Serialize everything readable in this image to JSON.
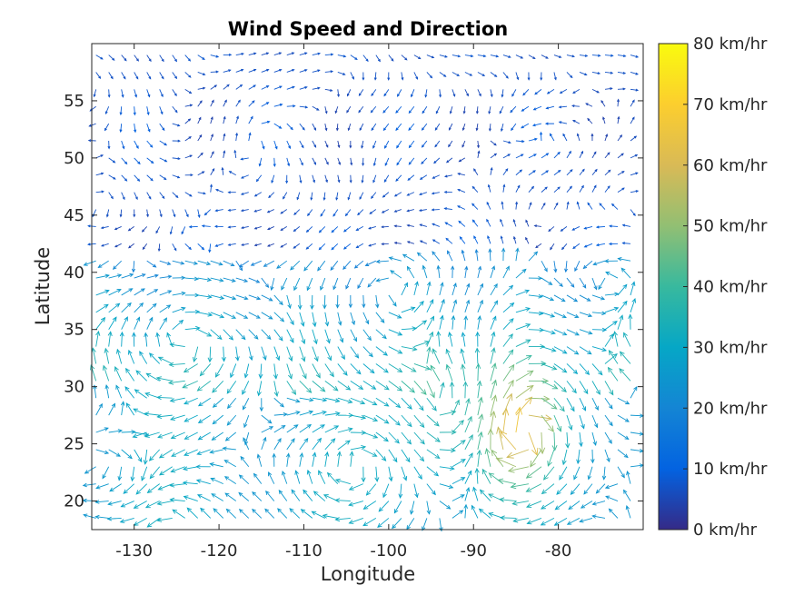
{
  "chart_data": {
    "type": "quiver",
    "title": "Wind Speed and Direction",
    "xlabel": "Longitude",
    "ylabel": "Latitude",
    "xlim": [
      -135,
      -70
    ],
    "ylim": [
      17.5,
      60
    ],
    "xticks": [
      -130,
      -120,
      -110,
      -100,
      -90,
      -80
    ],
    "xtick_labels": [
      "-130",
      "-120",
      "-110",
      "-100",
      "-90",
      "-80"
    ],
    "yticks": [
      20,
      25,
      30,
      35,
      40,
      45,
      50,
      55
    ],
    "ytick_labels": [
      "20",
      "25",
      "30",
      "35",
      "40",
      "45",
      "50",
      "55"
    ],
    "grid": false,
    "colormap": "parula",
    "colorbar": {
      "location": "right",
      "range": [
        0,
        80
      ],
      "ticks": [
        0,
        10,
        20,
        30,
        40,
        50,
        60,
        70,
        80
      ],
      "tick_labels": [
        "0 km/hr",
        "10 km/hr",
        "20 km/hr",
        "30 km/hr",
        "40 km/hr",
        "50 km/hr",
        "60 km/hr",
        "70 km/hr",
        "80 km/hr"
      ],
      "colors": [
        "#352a87",
        "#0363e1",
        "#1485d4",
        "#06a7c6",
        "#38b99e",
        "#92bf73",
        "#d9ba56",
        "#fcce2e",
        "#f9fb0e"
      ]
    },
    "grid_lon": {
      "start": -134.5,
      "step": 1.5,
      "count": 44
    },
    "grid_lat": {
      "start": 18.5,
      "step": 1.5,
      "count": 28
    },
    "approx_values_km_hr": {
      "north_region_lat_40_to_60": "5-15",
      "central_region_lat_30_to_40": "20-40",
      "southeast_gulf_region_lat_22_to_30_lon_-95_to_-75": "35-65"
    }
  }
}
